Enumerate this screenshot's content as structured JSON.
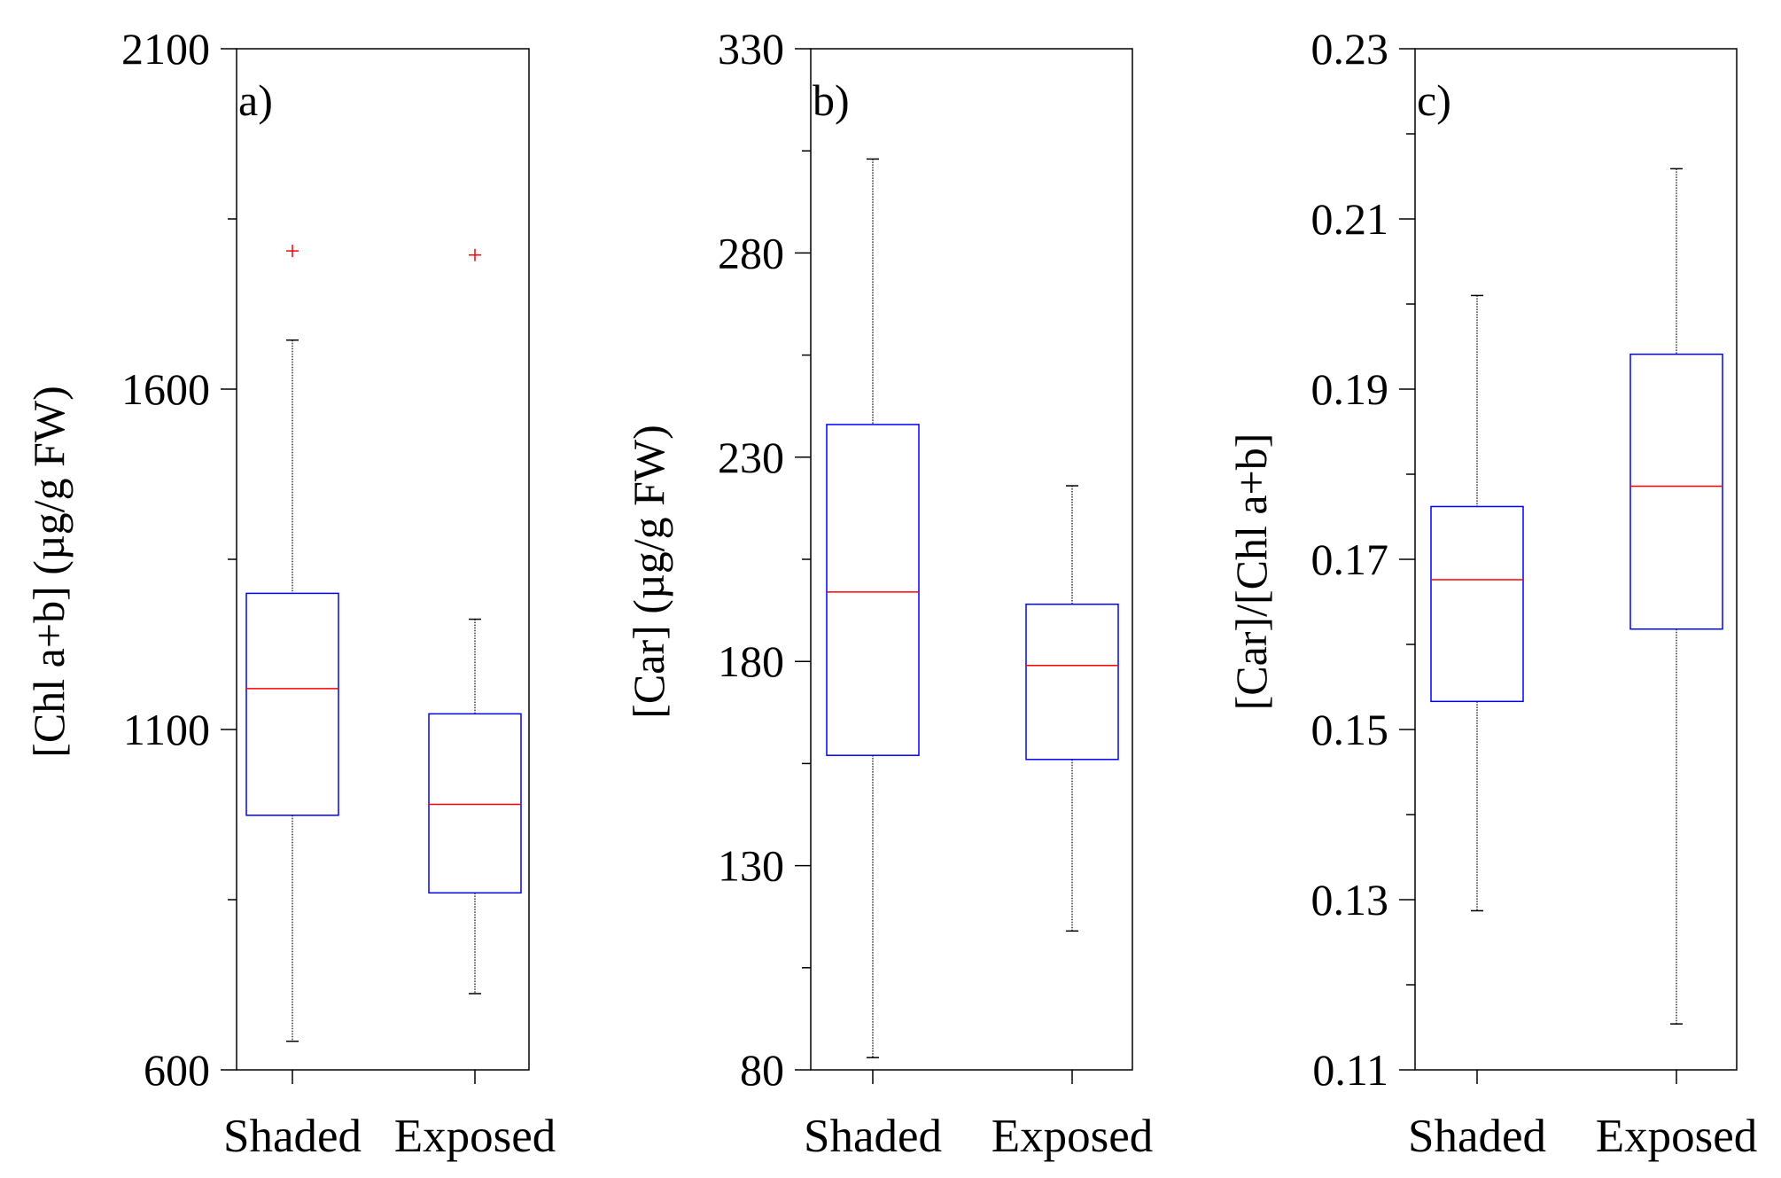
{
  "chart_data": [
    {
      "type": "box",
      "panel_label": "a)",
      "ylabel": "[Chl a+b] (µg/g FW)",
      "ylim": [
        600,
        2100
      ],
      "yticks": [
        600,
        1100,
        1600,
        2100
      ],
      "ytick_labels": [
        "600",
        "1100",
        "1600",
        "2100"
      ],
      "categories": [
        "Shaded",
        "Exposed"
      ],
      "boxes": [
        {
          "category": "Shaded",
          "whisker_low": 642,
          "q1": 974,
          "median": 1160,
          "q3": 1300,
          "whisker_high": 1672,
          "outliers": [
            1803
          ]
        },
        {
          "category": "Exposed",
          "whisker_low": 712,
          "q1": 860,
          "median": 990,
          "q3": 1123,
          "whisker_high": 1262,
          "outliers": [
            1797
          ]
        }
      ]
    },
    {
      "type": "box",
      "panel_label": "b)",
      "ylabel": "[Car] (µg/g FW)",
      "ylim": [
        80,
        330
      ],
      "yticks": [
        80,
        130,
        180,
        230,
        280,
        330
      ],
      "ytick_labels": [
        "80",
        "130",
        "180",
        "230",
        "280",
        "330"
      ],
      "categories": [
        "Shaded",
        "Exposed"
      ],
      "boxes": [
        {
          "category": "Shaded",
          "whisker_low": 83,
          "q1": 157,
          "median": 197,
          "q3": 238,
          "whisker_high": 303,
          "outliers": []
        },
        {
          "category": "Exposed",
          "whisker_low": 114,
          "q1": 156,
          "median": 179,
          "q3": 194,
          "whisker_high": 223,
          "outliers": []
        }
      ]
    },
    {
      "type": "box",
      "panel_label": "c)",
      "ylabel": "[Car]/[Chl a+b]",
      "ylim": [
        0.11,
        0.23
      ],
      "yticks": [
        0.11,
        0.13,
        0.15,
        0.17,
        0.19,
        0.21,
        0.23
      ],
      "ytick_labels": [
        "0.11",
        "0.13",
        "0.15",
        "0.17",
        "0.19",
        "0.21",
        "0.23"
      ],
      "categories": [
        "Shaded",
        "Exposed"
      ],
      "boxes": [
        {
          "category": "Shaded",
          "whisker_low": 0.1287,
          "q1": 0.1533,
          "median": 0.1676,
          "q3": 0.1762,
          "whisker_high": 0.201,
          "outliers": []
        },
        {
          "category": "Exposed",
          "whisker_low": 0.1154,
          "q1": 0.1618,
          "median": 0.1786,
          "q3": 0.1941,
          "whisker_high": 0.2159,
          "outliers": []
        }
      ]
    }
  ],
  "colors": {
    "box": "#0000ff",
    "median": "#ff0000",
    "outlier": "#ff0000",
    "whisker": "#000000",
    "axis": "#000000"
  }
}
